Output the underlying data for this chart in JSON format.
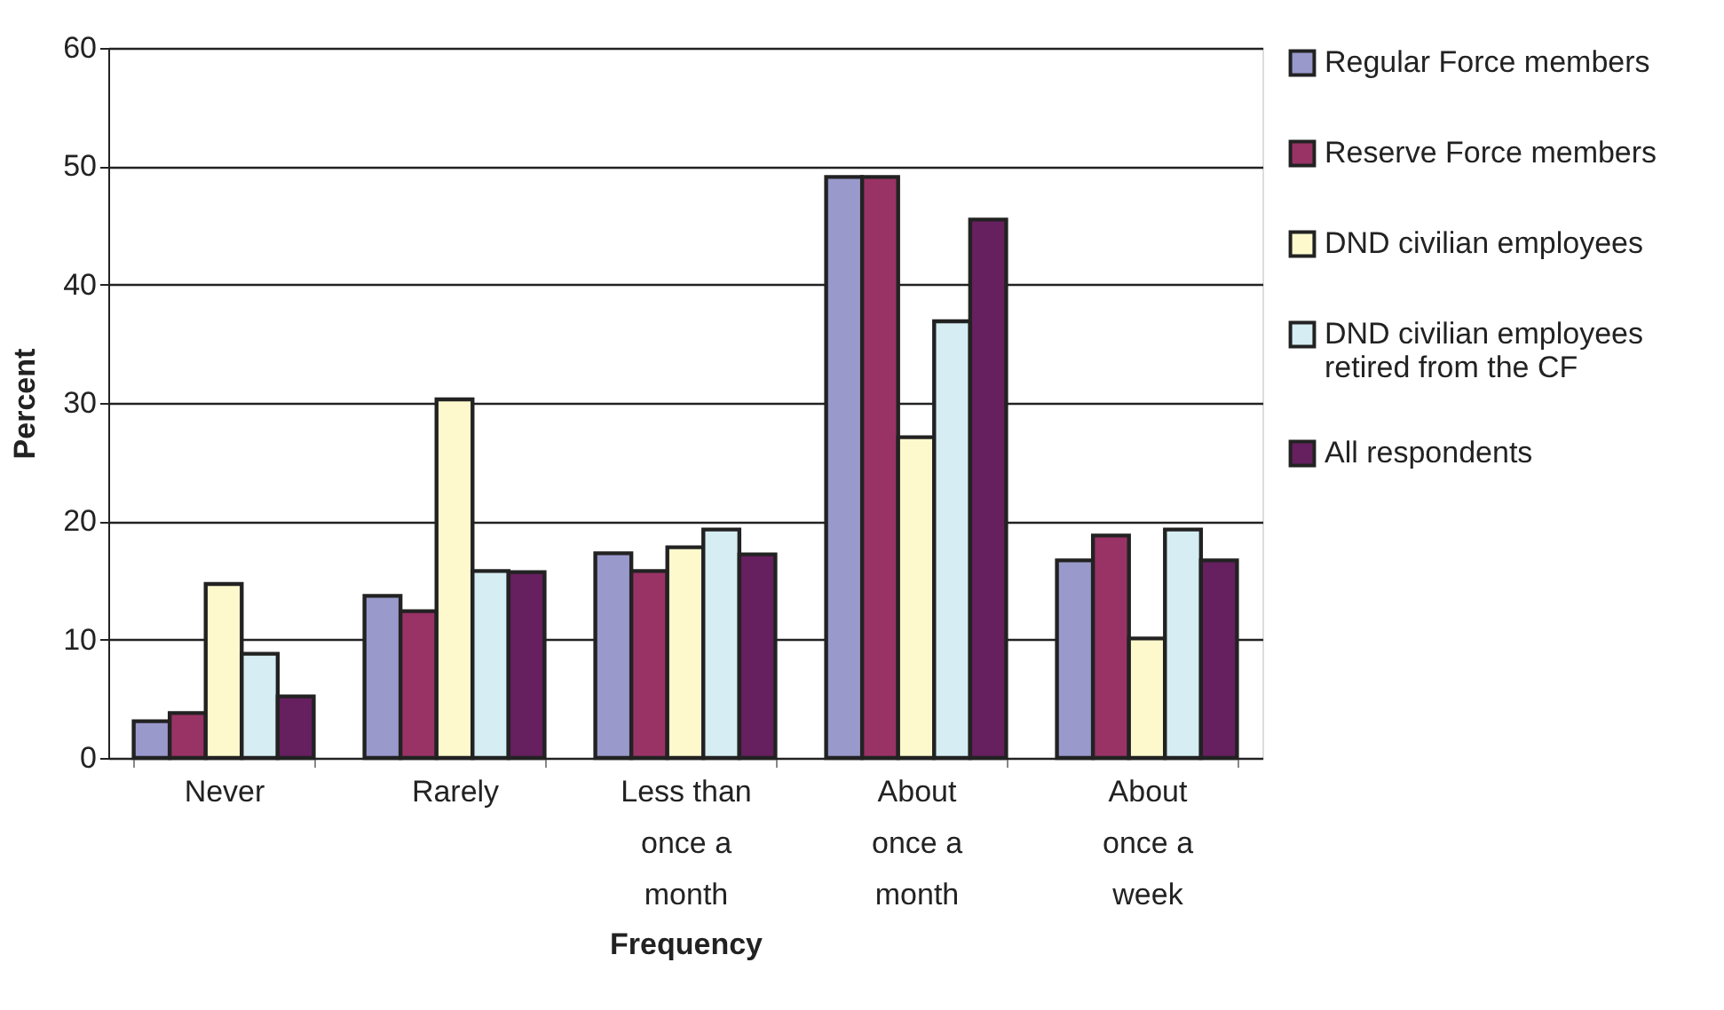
{
  "chart_data": {
    "type": "bar",
    "xlabel": "Frequency",
    "ylabel": "Percent",
    "categories": [
      "Never",
      "Rarely",
      "Less than once a month",
      "About once a month",
      "About once a week"
    ],
    "series": [
      {
        "name": "Regular Force members",
        "color": "#9999cc",
        "values": [
          3.1,
          13.7,
          17.3,
          49.1,
          16.7
        ]
      },
      {
        "name": "Reserve Force members",
        "color": "#993366",
        "values": [
          3.8,
          12.4,
          15.8,
          49.1,
          18.8
        ]
      },
      {
        "name": "DND civilian employees",
        "color": "#fdf9cd",
        "values": [
          14.7,
          30.3,
          17.8,
          27.1,
          10.1
        ]
      },
      {
        "name": "DND civilian employees retired from the CF",
        "color": "#d5edf3",
        "values": [
          8.8,
          15.8,
          19.3,
          36.9,
          19.3
        ]
      },
      {
        "name": "All respondents",
        "color": "#661f5f",
        "values": [
          5.2,
          15.7,
          17.2,
          45.5,
          16.7
        ]
      }
    ],
    "ylim": [
      0,
      60
    ],
    "yticks": [
      0,
      10,
      20,
      30,
      40,
      50,
      60
    ],
    "grid": "y",
    "legend": "right"
  }
}
